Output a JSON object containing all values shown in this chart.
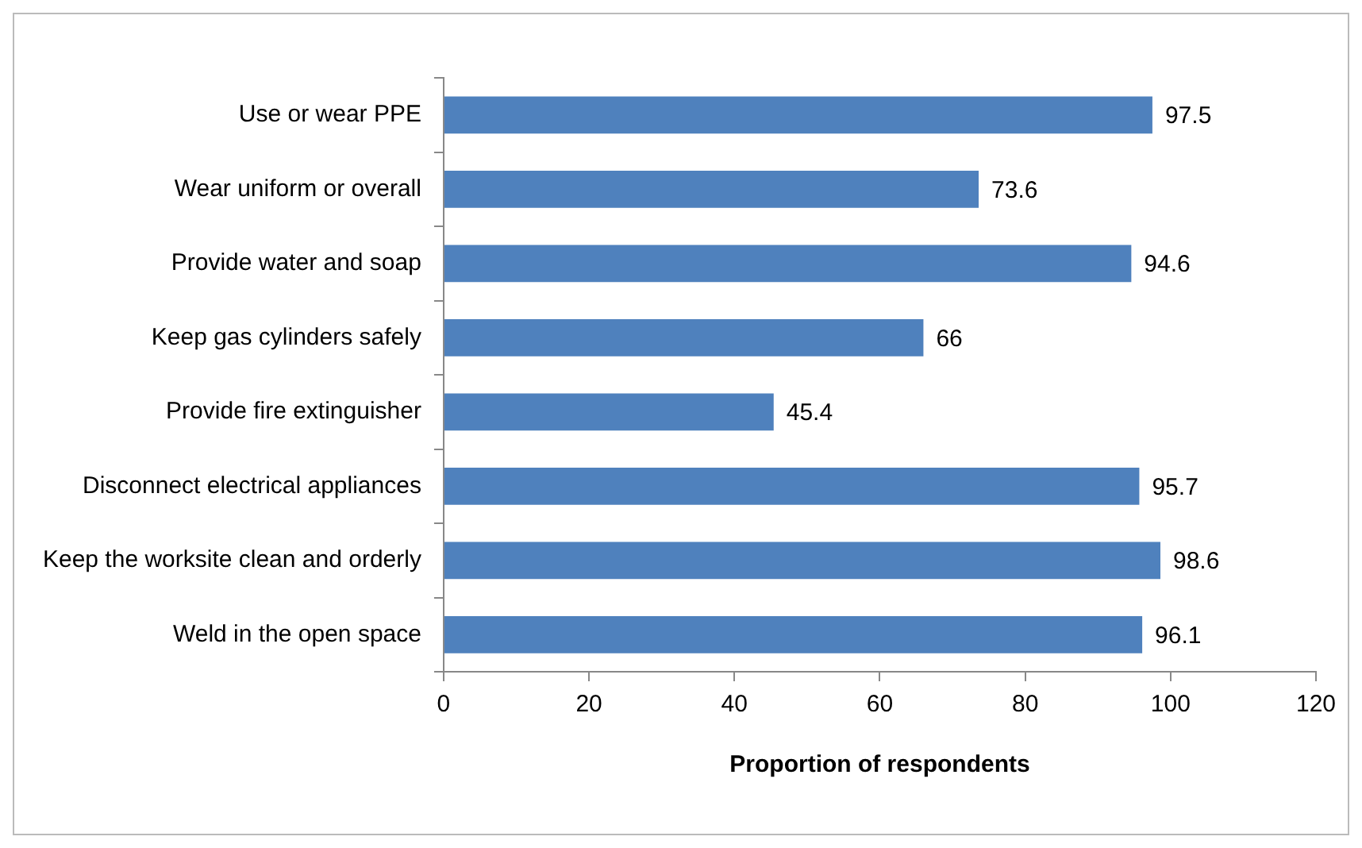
{
  "chart_data": {
    "type": "bar",
    "orientation": "horizontal",
    "categories": [
      "Use or wear PPE",
      "Wear uniform or overall",
      "Provide water and soap",
      "Keep gas cylinders safely",
      "Provide fire extinguisher",
      "Disconnect electrical appliances",
      "Keep the worksite clean and orderly",
      "Weld in the open space"
    ],
    "values": [
      97.5,
      73.6,
      94.6,
      66,
      45.4,
      95.7,
      98.6,
      96.1
    ],
    "color": "#4f81bd",
    "xlabel": "Proportion of respondents",
    "xlim": [
      0,
      120
    ],
    "xticks": [
      0,
      20,
      40,
      60,
      80,
      100,
      120
    ],
    "grid": false,
    "legend": false,
    "data_labels": true
  }
}
